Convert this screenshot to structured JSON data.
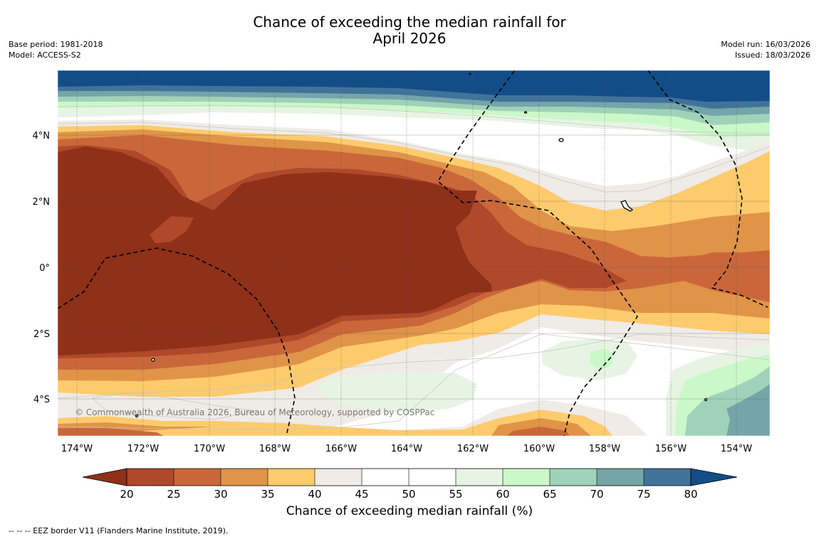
{
  "title": {
    "line1": "Chance of exceeding the median rainfall for",
    "line2": "April 2026"
  },
  "meta_left": {
    "base_period": "Base period: 1981-2018",
    "model": "Model: ACCESS-S2"
  },
  "meta_right": {
    "model_run": "Model run: 16/03/2026",
    "issued": "Issued: 18/03/2026"
  },
  "map": {
    "copyright": "© Commonwealth of Australia 2026, Bureau of Meteorology, supported by COSPPac",
    "lon_labels": [
      "174°W",
      "172°W",
      "170°W",
      "168°W",
      "166°W",
      "164°W",
      "162°W",
      "160°W",
      "158°W",
      "156°W",
      "154°W"
    ],
    "lat_labels": [
      "4°N",
      "2°N",
      "0°",
      "2°S",
      "4°S"
    ]
  },
  "colorbar": {
    "title": "Chance of exceeding median rainfall (%)",
    "ticks": [
      "20",
      "25",
      "30",
      "35",
      "40",
      "45",
      "50",
      "55",
      "60",
      "65",
      "70",
      "75",
      "80"
    ],
    "colors": {
      "below20": "#8f3019",
      "20-25": "#b0482a",
      "25-30": "#c9673a",
      "30-35": "#e09448",
      "35-40": "#fdcb6c",
      "40-45": "#efebe6",
      "45-50": "#ffffff",
      "50-55": "#ffffff",
      "55-60": "#e7f4e4",
      "60-65": "#cbf8c9",
      "65-70": "#a0d2b9",
      "70-75": "#74a5a9",
      "75-80": "#41739a",
      "above80": "#134d88"
    }
  },
  "footer": {
    "legend_text": "--  --  -- EEZ border V11 (Flanders Marine Institute, 2019)."
  }
}
